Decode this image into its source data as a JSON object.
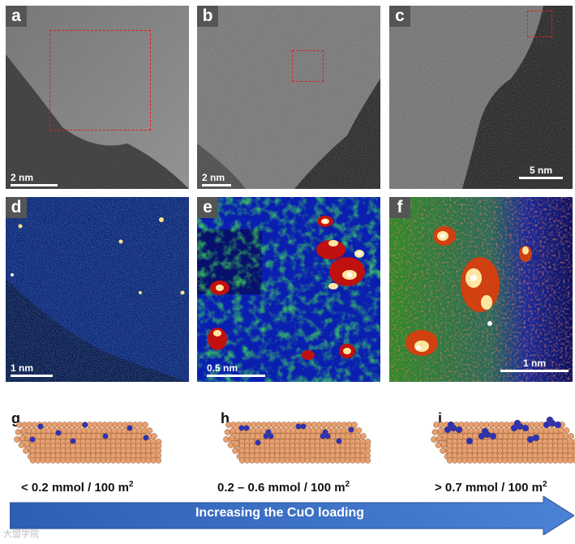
{
  "figure": {
    "panels_top": [
      {
        "letter": "a",
        "scale": "2 nm"
      },
      {
        "letter": "b",
        "scale": "2 nm"
      },
      {
        "letter": "c",
        "scale": "5 nm"
      }
    ],
    "panels_mid": [
      {
        "letter": "d",
        "scale": "1 nm"
      },
      {
        "letter": "e",
        "scale": "0.5 nm"
      },
      {
        "letter": "f",
        "scale": "1 nm"
      }
    ],
    "schematics": [
      {
        "letter": "g",
        "prefix": "< 0.2 mmol / 100 m",
        "sup": "2"
      },
      {
        "letter": "h",
        "prefix": "0.2 – 0.6 mmol / 100 m",
        "sup": "2"
      },
      {
        "letter": "i",
        "prefix": "> 0.7 mmol / 100 m",
        "sup": "2"
      }
    ],
    "arrow_label": "Increasing the CuO loading",
    "watermark": "大盟学院"
  },
  "colors": {
    "roi": "#e02020",
    "support_atom": "#e8a070",
    "cuo_atom": "#2a32b8",
    "arrow": "#3a6fc4"
  }
}
